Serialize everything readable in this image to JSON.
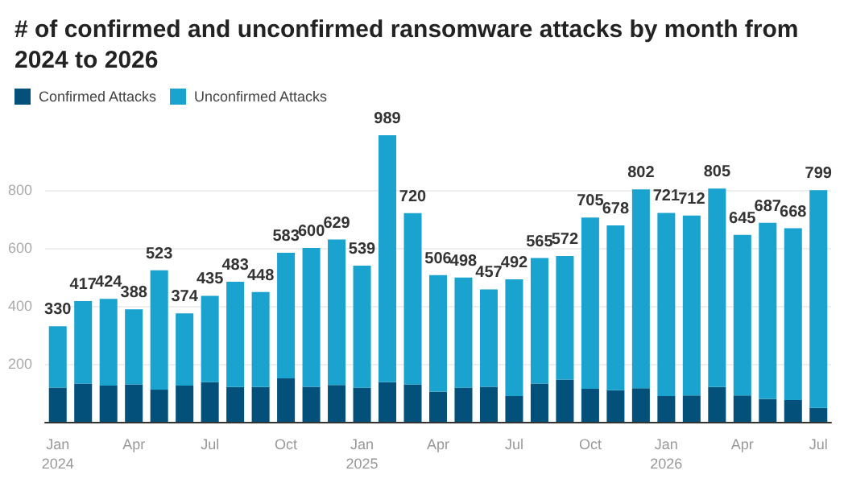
{
  "chart_data": {
    "type": "bar",
    "title": "# of confirmed and unconfirmed ransomware attacks by month from 2024 to 2026",
    "categories": [
      "Jan\n2024",
      null,
      null,
      "Apr",
      null,
      null,
      "Jul",
      null,
      null,
      "Oct",
      null,
      null,
      "Jan\n2025",
      null,
      null,
      "Apr",
      null,
      null,
      "Jul",
      null,
      null,
      "Oct",
      null,
      null,
      "Jan\n2026",
      null,
      null,
      "Apr",
      null,
      null,
      "Jul"
    ],
    "stacked": true,
    "series": [
      {
        "name": "Confirmed Attacks",
        "color": "#03517a",
        "values": [
          118,
          132,
          125,
          129,
          111,
          125,
          137,
          120,
          120,
          150,
          121,
          127,
          118,
          137,
          129,
          104,
          118,
          121,
          89,
          132,
          146,
          114,
          109,
          116,
          89,
          91,
          120,
          91,
          79,
          75,
          48
        ]
      },
      {
        "name": "Unconfirmed Attacks",
        "color": "#1aa3cf",
        "values": [
          212,
          285,
          299,
          259,
          412,
          249,
          298,
          363,
          328,
          433,
          479,
          502,
          421,
          852,
          591,
          402,
          380,
          336,
          403,
          433,
          426,
          591,
          569,
          686,
          632,
          621,
          685,
          554,
          608,
          593,
          751
        ]
      }
    ],
    "totals": [
      "330",
      "417",
      "424",
      "388",
      "523",
      "374",
      "435",
      "483",
      "448",
      "583",
      "600",
      "629",
      "539",
      "989",
      "720",
      "506",
      "498",
      "457",
      "492",
      "565",
      "572",
      "705",
      "678",
      "802",
      "721",
      "712",
      "805",
      "645",
      "687",
      "668",
      "799"
    ],
    "ylim": [
      0,
      1000
    ],
    "yticks": [
      {
        "value": 0,
        "label": null
      },
      200,
      400,
      600,
      800
    ],
    "grid": "y",
    "legend": "top left"
  }
}
